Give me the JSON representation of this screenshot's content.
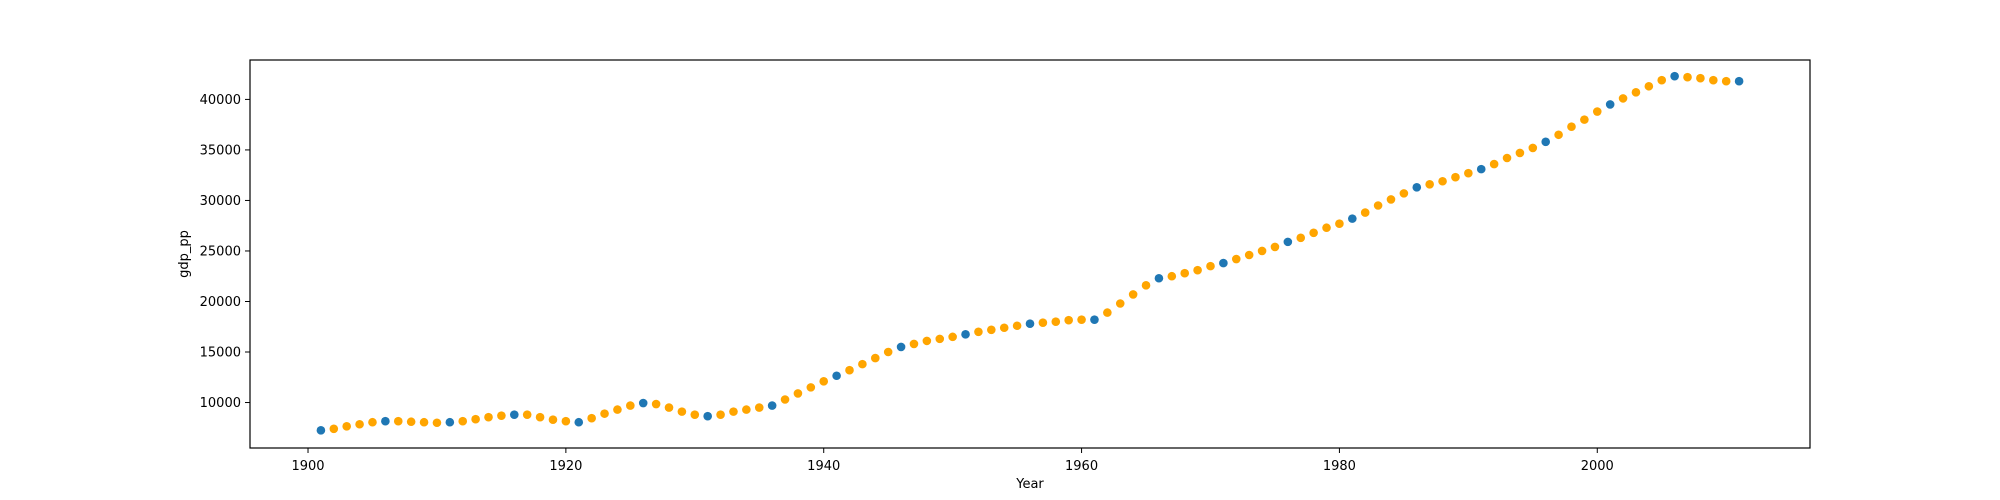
{
  "chart_data": {
    "type": "scatter",
    "title": "",
    "xlabel": "Year",
    "ylabel": "gdp_pp",
    "xlim": [
      1895.5,
      2016.5
    ],
    "ylim": [
      5500,
      43900
    ],
    "x_ticks": [
      1900,
      1920,
      1940,
      1960,
      1980,
      2000
    ],
    "y_ticks": [
      10000,
      15000,
      20000,
      25000,
      30000,
      35000,
      40000
    ],
    "grid": false,
    "colors": {
      "observed": "#1f77b4",
      "interpolated": "#ffa500"
    },
    "series": [
      {
        "points": [
          [
            1901,
            7250
          ],
          [
            1906,
            8150
          ],
          [
            1911,
            8050
          ],
          [
            1916,
            8800
          ],
          [
            1921,
            8050
          ],
          [
            1926,
            9950
          ],
          [
            1931,
            8650
          ],
          [
            1936,
            9700
          ],
          [
            1941,
            12650
          ],
          [
            1946,
            15500
          ],
          [
            1951,
            16750
          ],
          [
            1956,
            17800
          ],
          [
            1961,
            18200
          ],
          [
            1966,
            22300
          ],
          [
            1971,
            23800
          ],
          [
            1976,
            25900
          ],
          [
            1981,
            28200
          ],
          [
            1986,
            31300
          ],
          [
            1991,
            33100
          ],
          [
            1996,
            35800
          ],
          [
            2001,
            39500
          ],
          [
            2006,
            42300
          ],
          [
            2011,
            41800
          ]
        ]
      },
      {
        "points": [
          [
            1902,
            7400
          ],
          [
            1903,
            7650
          ],
          [
            1904,
            7850
          ],
          [
            1905,
            8050
          ],
          [
            1907,
            8150
          ],
          [
            1908,
            8100
          ],
          [
            1909,
            8050
          ],
          [
            1910,
            8000
          ],
          [
            1912,
            8150
          ],
          [
            1913,
            8350
          ],
          [
            1914,
            8550
          ],
          [
            1915,
            8700
          ],
          [
            1917,
            8800
          ],
          [
            1918,
            8550
          ],
          [
            1919,
            8300
          ],
          [
            1920,
            8150
          ],
          [
            1922,
            8450
          ],
          [
            1923,
            8900
          ],
          [
            1924,
            9300
          ],
          [
            1925,
            9700
          ],
          [
            1927,
            9850
          ],
          [
            1928,
            9500
          ],
          [
            1929,
            9100
          ],
          [
            1930,
            8800
          ],
          [
            1932,
            8800
          ],
          [
            1933,
            9100
          ],
          [
            1934,
            9300
          ],
          [
            1935,
            9500
          ],
          [
            1937,
            10300
          ],
          [
            1938,
            10900
          ],
          [
            1939,
            11500
          ],
          [
            1940,
            12100
          ],
          [
            1942,
            13200
          ],
          [
            1943,
            13800
          ],
          [
            1944,
            14400
          ],
          [
            1945,
            15000
          ],
          [
            1947,
            15800
          ],
          [
            1948,
            16100
          ],
          [
            1949,
            16300
          ],
          [
            1950,
            16500
          ],
          [
            1952,
            17000
          ],
          [
            1953,
            17200
          ],
          [
            1954,
            17400
          ],
          [
            1955,
            17600
          ],
          [
            1957,
            17900
          ],
          [
            1958,
            18000
          ],
          [
            1959,
            18150
          ],
          [
            1960,
            18200
          ],
          [
            1962,
            18900
          ],
          [
            1963,
            19800
          ],
          [
            1964,
            20700
          ],
          [
            1965,
            21600
          ],
          [
            1967,
            22500
          ],
          [
            1968,
            22800
          ],
          [
            1969,
            23100
          ],
          [
            1970,
            23500
          ],
          [
            1972,
            24200
          ],
          [
            1973,
            24600
          ],
          [
            1974,
            25000
          ],
          [
            1975,
            25400
          ],
          [
            1977,
            26300
          ],
          [
            1978,
            26800
          ],
          [
            1979,
            27300
          ],
          [
            1980,
            27700
          ],
          [
            1982,
            28800
          ],
          [
            1983,
            29500
          ],
          [
            1984,
            30100
          ],
          [
            1985,
            30700
          ],
          [
            1987,
            31600
          ],
          [
            1988,
            31900
          ],
          [
            1989,
            32300
          ],
          [
            1990,
            32700
          ],
          [
            1992,
            33600
          ],
          [
            1993,
            34200
          ],
          [
            1994,
            34700
          ],
          [
            1995,
            35200
          ],
          [
            1997,
            36500
          ],
          [
            1998,
            37300
          ],
          [
            1999,
            38000
          ],
          [
            2000,
            38800
          ],
          [
            2002,
            40100
          ],
          [
            2003,
            40700
          ],
          [
            2004,
            41300
          ],
          [
            2005,
            41900
          ],
          [
            2007,
            42200
          ],
          [
            2008,
            42100
          ],
          [
            2009,
            41900
          ],
          [
            2010,
            41800
          ]
        ]
      }
    ]
  }
}
